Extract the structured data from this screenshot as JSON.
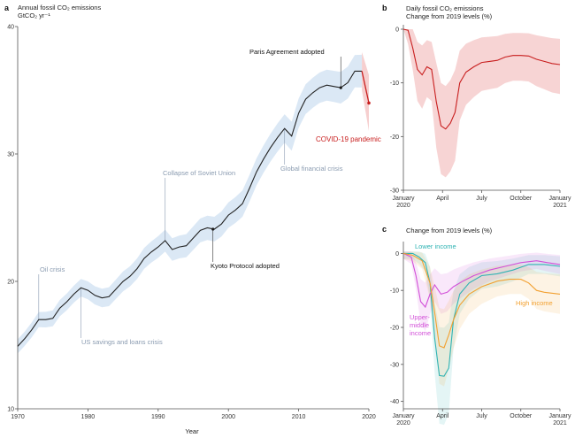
{
  "colors": {
    "black_line": "#222222",
    "blue_band": "#dbe8f5",
    "annotation_grey": "#8a9bb0",
    "covid_red": "#c81e1e",
    "red_band": "#f6cfcf",
    "lower": "#2fb3b3",
    "upper": "#d24fd8",
    "high": "#f2a030"
  },
  "panel_a": {
    "letter": "a",
    "title": "Annual fossil CO₂ emissions",
    "unit": "GtCO₂ yr⁻¹",
    "xlabel": "Year",
    "annotations": {
      "oil": "Oil crisis",
      "us": "US savings and loans crisis",
      "soviet": "Collapse of Soviet Union",
      "kyoto": "Kyoto Protocol adopted",
      "gfc": "Global financial crisis",
      "paris": "Paris Agreement adopted",
      "covid": "COVID-19 pandemic"
    }
  },
  "panel_b": {
    "letter": "b",
    "title_line1": "Daily fossil CO₂ emissions",
    "title_line2": "Change from 2019 levels (%)"
  },
  "panel_c": {
    "letter": "c",
    "title": "Change from 2019 levels (%)",
    "labels": {
      "lower": "Lower income",
      "upper_1": "Upper-",
      "upper_2": "middle",
      "upper_3": "income",
      "high": "High income"
    }
  },
  "chart_data": [
    {
      "type": "line",
      "panel": "a",
      "xlim": [
        1970,
        2020
      ],
      "ylim": [
        10,
        40
      ],
      "x_ticks": [
        "1970",
        "1980",
        "1990",
        "2000",
        "2010",
        "2020"
      ],
      "y_ticks": [
        "10",
        "20",
        "30",
        "40"
      ],
      "series": [
        {
          "x": [
            1970,
            1971,
            1972,
            1973,
            1974,
            1975,
            1976,
            1977,
            1978,
            1979,
            1980,
            1981,
            1982,
            1983,
            1984,
            1985,
            1986,
            1987,
            1988,
            1989,
            1990,
            1991,
            1992,
            1993,
            1994,
            1995,
            1996,
            1997,
            1998,
            1999,
            2000,
            2001,
            2002,
            2003,
            2004,
            2005,
            2006,
            2007,
            2008,
            2009,
            2010,
            2011,
            2012,
            2013,
            2014,
            2015,
            2016,
            2017,
            2018,
            2019
          ],
          "y": [
            14.9,
            15.5,
            16.2,
            17.0,
            17.0,
            17.1,
            17.9,
            18.4,
            19.0,
            19.5,
            19.3,
            18.9,
            18.7,
            18.8,
            19.4,
            20.0,
            20.4,
            21.0,
            21.8,
            22.3,
            22.7,
            23.2,
            22.5,
            22.7,
            22.8,
            23.4,
            24.0,
            24.2,
            24.1,
            24.5,
            25.2,
            25.6,
            26.1,
            27.3,
            28.6,
            29.6,
            30.5,
            31.3,
            32.0,
            31.4,
            33.2,
            34.3,
            34.8,
            35.2,
            35.4,
            35.3,
            35.2,
            35.6,
            36.5,
            36.5
          ]
        },
        {
          "x": [
            2019,
            2020
          ],
          "y": [
            36.5,
            34.0
          ]
        }
      ]
    },
    {
      "type": "line",
      "panel": "b",
      "ylim": [
        -30,
        0
      ],
      "x_ticks": [
        "January\n2020",
        "April",
        "July",
        "October",
        "January\n2021"
      ],
      "y_ticks": [
        "0",
        "-10",
        "-20",
        "-30"
      ],
      "series": [
        {
          "x": [
            0,
            0.03,
            0.06,
            0.09,
            0.12,
            0.15,
            0.18,
            0.21,
            0.24,
            0.27,
            0.3,
            0.33,
            0.36,
            0.4,
            0.45,
            0.5,
            0.55,
            0.6,
            0.65,
            0.7,
            0.75,
            0.8,
            0.85,
            0.9,
            0.95,
            1.0
          ],
          "y": [
            0,
            -0.2,
            -3.5,
            -7.5,
            -8.5,
            -7.0,
            -7.5,
            -13.5,
            -18.0,
            -18.6,
            -17.5,
            -15.5,
            -10.0,
            -8.0,
            -7.0,
            -6.2,
            -6.0,
            -5.8,
            -5.2,
            -4.9,
            -4.9,
            -5.0,
            -5.6,
            -6.0,
            -6.4,
            -6.6
          ]
        }
      ]
    },
    {
      "type": "line",
      "panel": "c",
      "ylim": [
        -42,
        2
      ],
      "x_ticks": [
        "January\n2020",
        "April",
        "July",
        "October",
        "January\n2021"
      ],
      "y_ticks": [
        "0",
        "-10",
        "-20",
        "-30",
        "-40"
      ],
      "series": [
        {
          "key": "lower",
          "x": [
            0,
            0.06,
            0.1,
            0.14,
            0.17,
            0.2,
            0.23,
            0.26,
            0.29,
            0.32,
            0.36,
            0.42,
            0.5,
            0.6,
            0.7,
            0.8,
            0.9,
            1.0
          ],
          "y": [
            0,
            0,
            -1.0,
            -2.5,
            -8.0,
            -23.0,
            -33.0,
            -33.2,
            -31.0,
            -18.0,
            -11.0,
            -8.0,
            -6.0,
            -5.5,
            -4.5,
            -3.0,
            -3.0,
            -3.5
          ]
        },
        {
          "key": "upper",
          "x": [
            0,
            0.05,
            0.08,
            0.11,
            0.14,
            0.17,
            0.2,
            0.24,
            0.28,
            0.32,
            0.38,
            0.45,
            0.55,
            0.65,
            0.75,
            0.85,
            0.92,
            1.0
          ],
          "y": [
            0,
            -1.0,
            -6.0,
            -13.0,
            -14.5,
            -11.0,
            -8.5,
            -11.0,
            -10.5,
            -9.0,
            -7.5,
            -6.0,
            -4.5,
            -3.5,
            -2.5,
            -2.0,
            -2.5,
            -3.0
          ]
        },
        {
          "key": "high",
          "x": [
            0,
            0.06,
            0.12,
            0.17,
            0.2,
            0.23,
            0.26,
            0.29,
            0.32,
            0.36,
            0.42,
            0.5,
            0.6,
            0.68,
            0.75,
            0.8,
            0.85,
            0.9,
            1.0
          ],
          "y": [
            0,
            -0.5,
            -2.0,
            -8.0,
            -16.0,
            -25.0,
            -25.5,
            -22.0,
            -18.0,
            -14.0,
            -11.0,
            -9.0,
            -7.5,
            -7.0,
            -7.0,
            -8.0,
            -10.0,
            -10.5,
            -11.0
          ]
        }
      ]
    }
  ]
}
